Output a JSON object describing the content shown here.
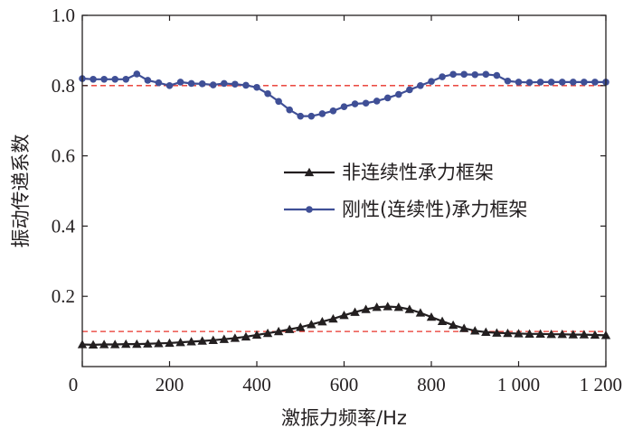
{
  "chart_data": {
    "type": "line",
    "xlabel": "激振力频率/Hz",
    "ylabel": "振动传递系数",
    "xlim": [
      0,
      1200
    ],
    "ylim": [
      0,
      1.0
    ],
    "xticks": [
      {
        "value": 0,
        "label": "0"
      },
      {
        "value": 200,
        "label": "200"
      },
      {
        "value": 400,
        "label": "400"
      },
      {
        "value": 600,
        "label": "600"
      },
      {
        "value": 800,
        "label": "800"
      },
      {
        "value": 1000,
        "label": "1 000"
      },
      {
        "value": 1200,
        "label": "1 200"
      }
    ],
    "yticks": [
      {
        "value": 0.2,
        "label": "0.2"
      },
      {
        "value": 0.4,
        "label": "0.4"
      },
      {
        "value": 0.6,
        "label": "0.6"
      },
      {
        "value": 0.8,
        "label": "0.8"
      },
      {
        "value": 1.0,
        "label": "1.0"
      }
    ],
    "legend_position": "center-right",
    "series": [
      {
        "name": "非连续性承力框架",
        "color": "#231f20",
        "marker": "triangle",
        "x": [
          0,
          25,
          50,
          75,
          100,
          125,
          150,
          175,
          200,
          225,
          250,
          275,
          300,
          325,
          350,
          375,
          400,
          425,
          450,
          475,
          500,
          525,
          550,
          575,
          600,
          625,
          650,
          675,
          700,
          725,
          750,
          775,
          800,
          825,
          850,
          875,
          900,
          925,
          950,
          975,
          1000,
          1025,
          1050,
          1075,
          1100,
          1125,
          1150,
          1175,
          1200
        ],
        "y": [
          0.063,
          0.062,
          0.063,
          0.063,
          0.064,
          0.064,
          0.065,
          0.066,
          0.067,
          0.069,
          0.071,
          0.073,
          0.075,
          0.078,
          0.081,
          0.085,
          0.09,
          0.095,
          0.1,
          0.106,
          0.112,
          0.12,
          0.128,
          0.136,
          0.146,
          0.155,
          0.163,
          0.169,
          0.171,
          0.169,
          0.163,
          0.153,
          0.141,
          0.129,
          0.118,
          0.109,
          0.102,
          0.098,
          0.096,
          0.095,
          0.094,
          0.093,
          0.093,
          0.092,
          0.092,
          0.091,
          0.091,
          0.09,
          0.089
        ]
      },
      {
        "name": "刚性(连续性)承力框架",
        "color": "#3f4f96",
        "marker": "circle",
        "x": [
          0,
          25,
          50,
          75,
          100,
          125,
          150,
          175,
          200,
          225,
          250,
          275,
          300,
          325,
          350,
          375,
          400,
          425,
          450,
          475,
          500,
          525,
          550,
          575,
          600,
          625,
          650,
          675,
          700,
          725,
          750,
          775,
          800,
          825,
          850,
          875,
          900,
          925,
          950,
          975,
          1000,
          1025,
          1050,
          1075,
          1100,
          1125,
          1150,
          1175,
          1200
        ],
        "y": [
          0.82,
          0.818,
          0.818,
          0.818,
          0.818,
          0.833,
          0.815,
          0.808,
          0.8,
          0.81,
          0.806,
          0.805,
          0.802,
          0.806,
          0.804,
          0.801,
          0.795,
          0.777,
          0.755,
          0.731,
          0.713,
          0.713,
          0.72,
          0.728,
          0.74,
          0.748,
          0.75,
          0.756,
          0.765,
          0.775,
          0.788,
          0.8,
          0.812,
          0.825,
          0.832,
          0.832,
          0.831,
          0.832,
          0.829,
          0.813,
          0.81,
          0.809,
          0.81,
          0.81,
          0.81,
          0.81,
          0.81,
          0.81,
          0.81
        ]
      }
    ],
    "reference_lines": [
      {
        "axis": "y",
        "value": 0.8,
        "color": "#e8332a",
        "style": "dashed"
      },
      {
        "axis": "y",
        "value": 0.1,
        "color": "#e8332a",
        "style": "dashed"
      }
    ]
  }
}
